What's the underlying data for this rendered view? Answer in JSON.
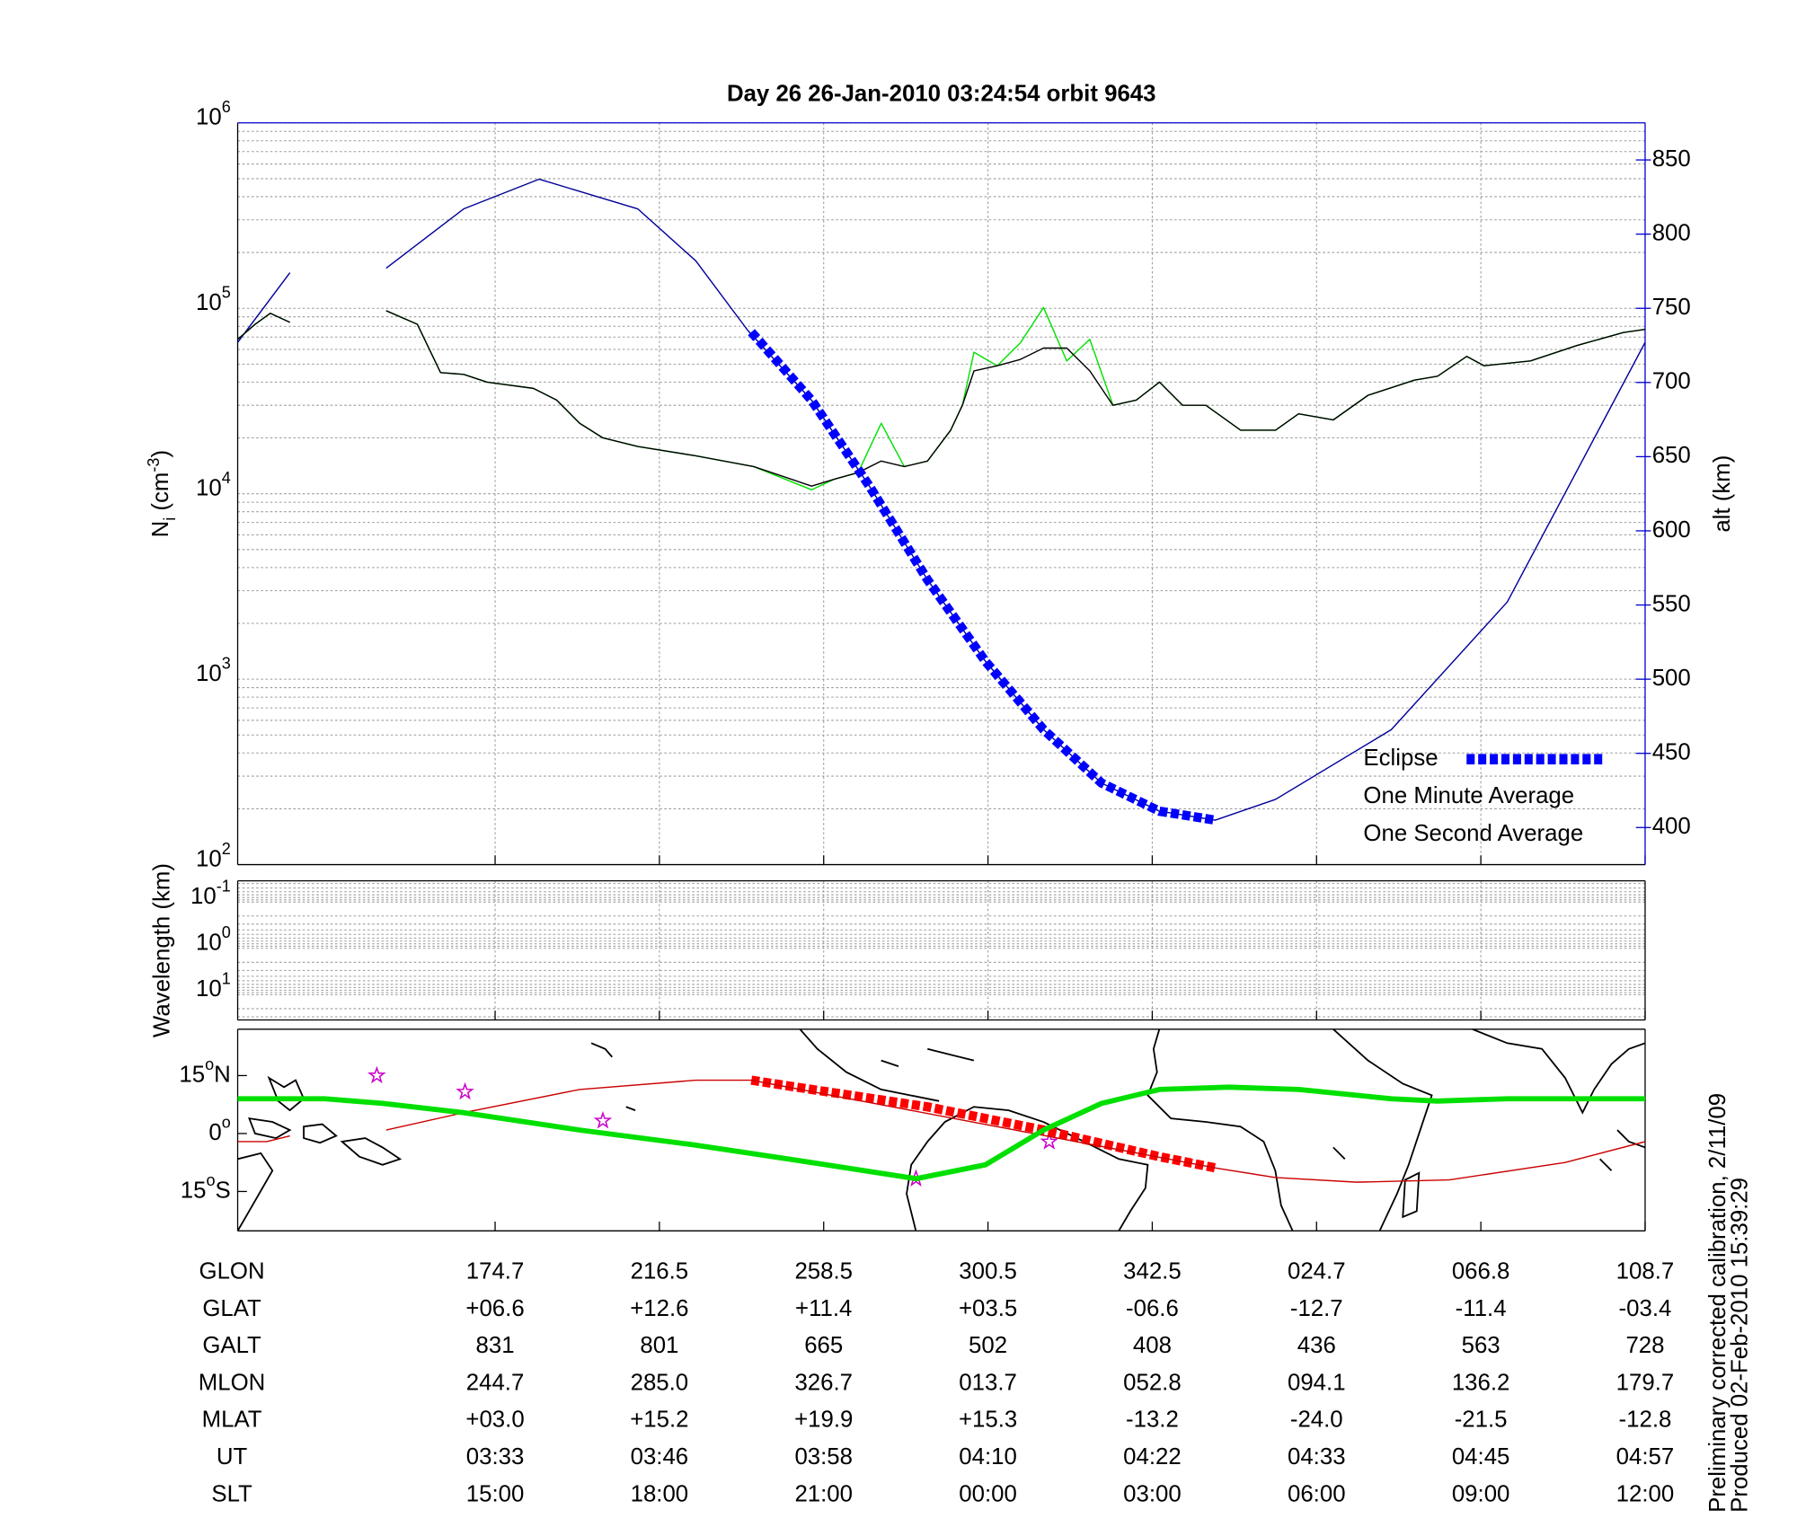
{
  "chart_data": [
    {
      "type": "line",
      "title": "Day 26  26-Jan-2010 03:24:54   orbit 9643",
      "ylabel": {
        "base": "N",
        "sub": "i",
        "unit": " (cm",
        "sup": "-3",
        "end": ")"
      },
      "y2label": "alt (km)",
      "yscale": "log",
      "ylim": [
        100,
        1000000
      ],
      "yticks": [
        {
          "value": 100,
          "label": "10",
          "sup": "2"
        },
        {
          "value": 1000,
          "label": "10",
          "sup": "3"
        },
        {
          "value": 10000,
          "label": "10",
          "sup": "4"
        },
        {
          "value": 100000,
          "label": "10",
          "sup": "5"
        },
        {
          "value": 1000000,
          "label": "10",
          "sup": "6"
        }
      ],
      "minor_ticks": [
        2,
        3,
        4,
        5,
        6,
        7,
        8,
        9
      ],
      "y2lim": [
        375,
        875
      ],
      "y2ticks": [
        400,
        450,
        500,
        550,
        600,
        650,
        700,
        750,
        800,
        850
      ],
      "xlim": [
        -1.567,
        7
      ],
      "xticks": [
        0,
        1,
        2,
        3,
        4,
        5,
        6,
        7
      ],
      "grid": true,
      "legend": "lower right",
      "series": [
        {
          "name": "Eclipse",
          "color": "#0000ff",
          "axis": "y2",
          "style": "dashed",
          "x": [
            1.56,
            1.927,
            2.279,
            2.632,
            2.985,
            3.338,
            3.691,
            4.044,
            4.383
          ],
          "values": [
            734,
            688,
            630,
            567,
            512,
            466,
            430,
            411,
            405
          ]
        },
        {
          "name": "One Minute Average",
          "color": "#000000",
          "x": [
            -1.567,
            -1.461,
            -1.369,
            -1.249,
            -0.956,
            -0.663,
            -0.473,
            -0.332,
            -0.191,
            -0.049,
            0.233,
            0.374,
            0.515,
            0.656,
            0.868,
            1.221,
            1.574,
            1.927,
            2.068,
            2.209,
            2.35,
            2.491,
            2.632,
            2.773,
            2.844,
            2.915,
            3.056,
            3.197,
            3.338,
            3.479,
            3.62,
            3.761,
            3.903,
            4.044,
            4.185,
            4.326,
            4.538,
            4.75,
            4.891,
            5.102,
            5.314,
            5.596,
            5.737,
            5.914,
            6.02,
            6.302,
            6.584,
            6.867,
            7
          ],
          "values": [
            68000,
            82000,
            94000,
            84000,
            null,
            97000,
            82000,
            45000,
            44000,
            40000,
            37000,
            32000,
            24000,
            20000,
            18000,
            16000,
            14000,
            11000,
            12000,
            13000,
            15000,
            14000,
            15000,
            22000,
            30000,
            46000,
            49000,
            53000,
            61000,
            61000,
            46000,
            30000,
            32000,
            40000,
            30000,
            30000,
            22000,
            22000,
            27000,
            25000,
            34000,
            41000,
            43000,
            55000,
            49000,
            52000,
            63000,
            74000,
            77000
          ]
        },
        {
          "name": "One Second Average",
          "color": "#00e000",
          "x": [
            -1.567,
            -1.461,
            -1.369,
            -1.249,
            -0.956,
            -0.663,
            -0.473,
            -0.332,
            -0.191,
            -0.049,
            0.233,
            0.374,
            0.515,
            0.656,
            0.868,
            1.221,
            1.574,
            1.927,
            2.068,
            2.209,
            2.35,
            2.491,
            2.632,
            2.773,
            2.844,
            2.915,
            3.056,
            3.197,
            3.338,
            3.479,
            3.62,
            3.761,
            3.903,
            4.044,
            4.185,
            4.326,
            4.538,
            4.75,
            4.891,
            5.102,
            5.314,
            5.596,
            5.737,
            5.914,
            6.02,
            6.302,
            6.584,
            6.867,
            7
          ],
          "values": [
            68000,
            82000,
            94000,
            84000,
            null,
            97000,
            82000,
            45000,
            44000,
            40000,
            37000,
            32000,
            24000,
            20000,
            18000,
            16000,
            14000,
            10500,
            12000,
            13000,
            24000,
            14000,
            15000,
            22000,
            30000,
            58000,
            49000,
            65000,
            101000,
            52000,
            68000,
            30000,
            32000,
            40000,
            30000,
            30000,
            22000,
            22000,
            27000,
            25000,
            34000,
            41000,
            43000,
            55000,
            49000,
            52000,
            63000,
            74000,
            77000
          ]
        },
        {
          "color": "#000099",
          "axis": "y2",
          "x": [
            -1.567,
            -1.249,
            -0.956,
            -0.663,
            -0.191,
            0.268,
            0.868,
            1.221,
            1.539,
            1.927,
            2.279,
            2.632,
            2.985,
            3.338,
            3.691,
            4.044,
            4.383,
            4.75,
            5.455,
            6.161,
            7
          ],
          "values": [
            727,
            774,
            null,
            777,
            817,
            837,
            817,
            782,
            735,
            688,
            630,
            567,
            512,
            466,
            430,
            411,
            405,
            419,
            466,
            552,
            727
          ]
        }
      ]
    },
    {
      "type": "line",
      "ylabel": {
        "base": "Wavelength (km)"
      },
      "yscale": "log",
      "ylim": [
        35,
        0.035
      ],
      "yticks": [
        {
          "value": 0.1,
          "label": "10",
          "sup": "-1"
        },
        {
          "value": 1,
          "label": "10",
          "sup": "0"
        },
        {
          "value": 10,
          "label": "10",
          "sup": "1"
        }
      ],
      "minor_ticks": [
        2,
        3,
        4,
        5,
        6,
        7,
        8,
        9
      ],
      "xlim": [
        -1.567,
        7
      ],
      "xticks": [
        0,
        1,
        2,
        3,
        4,
        5,
        6,
        7
      ],
      "grid": true
    },
    {
      "type": "map",
      "ylim": [
        -25.2,
        27
      ],
      "yticks": [
        {
          "value": 15,
          "label": "15",
          "sup": "o",
          "suffix": "N"
        },
        {
          "value": 0,
          "label": "0",
          "sup": "o"
        },
        {
          "value": -15,
          "label": "15",
          "sup": "o",
          "suffix": "S"
        }
      ],
      "xlim": [
        -1.567,
        7
      ],
      "xticks": [
        0,
        1,
        2,
        3,
        4,
        5,
        6,
        7
      ],
      "grid": false,
      "series": [
        {
          "color": "#00e000",
          "style": "thick",
          "x": [
            -1.567,
            -1.037,
            -0.685,
            -0.191,
            0.515,
            1.221,
            1.927,
            2.562,
            2.985,
            3.338,
            3.691,
            4.044,
            4.467,
            4.891,
            5.455,
            5.737,
            6.161,
            7
          ],
          "values": [
            9,
            9,
            7.8,
            5.4,
            0.9,
            -3,
            -7.5,
            -11.7,
            -8.1,
            0.9,
            7.8,
            11.4,
            12,
            11.4,
            9,
            8.4,
            9,
            9
          ]
        },
        {
          "color": "#cc0000",
          "x": [
            -1.567,
            -1.39,
            -1.249,
            -0.956,
            -0.663,
            -0.191,
            0.515,
            1.221,
            1.56,
            4.397,
            4.75,
            5.244,
            5.808,
            6.513,
            7
          ],
          "values": [
            -2.1,
            -2.1,
            -0.6,
            null,
            0.9,
            5.4,
            11.4,
            13.8,
            13.8,
            -9,
            -11.4,
            -12.6,
            -12,
            -7.5,
            -2.1
          ]
        },
        {
          "color": "#ff0000",
          "style": "dashed",
          "x": [
            1.56,
            1.927,
            2.632,
            3.338,
            4.044,
            4.397
          ],
          "values": [
            13.8,
            11.4,
            6.9,
            0.9,
            -6,
            -9
          ]
        },
        {
          "color": "#cc00cc",
          "marker": "star",
          "x": [
            -0.72,
            -0.183,
            0.656,
            2.562,
            3.373
          ],
          "values": [
            15,
            10.8,
            3.3,
            -11.7,
            -2.1
          ]
        }
      ]
    }
  ],
  "table": {
    "rows": [
      {
        "label": "GLON",
        "values": [
          "174.7",
          "216.5",
          "258.5",
          "300.5",
          "342.5",
          "024.7",
          "066.8",
          "108.7"
        ]
      },
      {
        "label": "GLAT",
        "values": [
          "+06.6",
          "+12.6",
          "+11.4",
          "+03.5",
          "-06.6",
          "-12.7",
          "-11.4",
          "-03.4"
        ]
      },
      {
        "label": "GALT",
        "values": [
          "831",
          "801",
          "665",
          "502",
          "408",
          "436",
          "563",
          "728"
        ]
      },
      {
        "label": "MLON",
        "values": [
          "244.7",
          "285.0",
          "326.7",
          "013.7",
          "052.8",
          "094.1",
          "136.2",
          "179.7"
        ]
      },
      {
        "label": "MLAT",
        "values": [
          "+03.0",
          "+15.2",
          "+19.9",
          "+15.3",
          "-13.2",
          "-24.0",
          "-21.5",
          "-12.8"
        ]
      },
      {
        "label": "UT",
        "values": [
          "03:33",
          "03:46",
          "03:58",
          "04:10",
          "04:22",
          "04:33",
          "04:45",
          "04:57"
        ]
      },
      {
        "label": "SLT",
        "values": [
          "15:00",
          "18:00",
          "21:00",
          "00:00",
          "03:00",
          "06:00",
          "09:00",
          "12:00"
        ]
      }
    ]
  },
  "notes": [
    "Preliminary corrected calibration, 2/11/09",
    "Produced 02-Feb-2010 15:39:29"
  ]
}
